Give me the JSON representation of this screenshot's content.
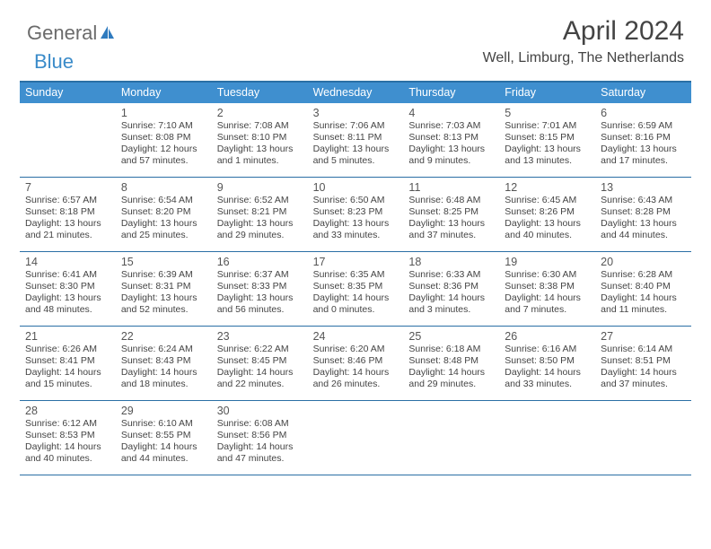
{
  "logo": {
    "text1": "General",
    "text2": "Blue"
  },
  "title": "April 2024",
  "location": "Well, Limburg, The Netherlands",
  "colors": {
    "header_bg": "#3f8fcf",
    "border": "#2a6fa5",
    "text": "#3a3a3a",
    "logo_gray": "#6b6b6b",
    "logo_blue": "#3a8bc9"
  },
  "day_headers": [
    "Sunday",
    "Monday",
    "Tuesday",
    "Wednesday",
    "Thursday",
    "Friday",
    "Saturday"
  ],
  "weeks": [
    [
      null,
      {
        "n": "1",
        "sr": "7:10 AM",
        "ss": "8:08 PM",
        "dl": "12 hours and 57 minutes."
      },
      {
        "n": "2",
        "sr": "7:08 AM",
        "ss": "8:10 PM",
        "dl": "13 hours and 1 minutes."
      },
      {
        "n": "3",
        "sr": "7:06 AM",
        "ss": "8:11 PM",
        "dl": "13 hours and 5 minutes."
      },
      {
        "n": "4",
        "sr": "7:03 AM",
        "ss": "8:13 PM",
        "dl": "13 hours and 9 minutes."
      },
      {
        "n": "5",
        "sr": "7:01 AM",
        "ss": "8:15 PM",
        "dl": "13 hours and 13 minutes."
      },
      {
        "n": "6",
        "sr": "6:59 AM",
        "ss": "8:16 PM",
        "dl": "13 hours and 17 minutes."
      }
    ],
    [
      {
        "n": "7",
        "sr": "6:57 AM",
        "ss": "8:18 PM",
        "dl": "13 hours and 21 minutes."
      },
      {
        "n": "8",
        "sr": "6:54 AM",
        "ss": "8:20 PM",
        "dl": "13 hours and 25 minutes."
      },
      {
        "n": "9",
        "sr": "6:52 AM",
        "ss": "8:21 PM",
        "dl": "13 hours and 29 minutes."
      },
      {
        "n": "10",
        "sr": "6:50 AM",
        "ss": "8:23 PM",
        "dl": "13 hours and 33 minutes."
      },
      {
        "n": "11",
        "sr": "6:48 AM",
        "ss": "8:25 PM",
        "dl": "13 hours and 37 minutes."
      },
      {
        "n": "12",
        "sr": "6:45 AM",
        "ss": "8:26 PM",
        "dl": "13 hours and 40 minutes."
      },
      {
        "n": "13",
        "sr": "6:43 AM",
        "ss": "8:28 PM",
        "dl": "13 hours and 44 minutes."
      }
    ],
    [
      {
        "n": "14",
        "sr": "6:41 AM",
        "ss": "8:30 PM",
        "dl": "13 hours and 48 minutes."
      },
      {
        "n": "15",
        "sr": "6:39 AM",
        "ss": "8:31 PM",
        "dl": "13 hours and 52 minutes."
      },
      {
        "n": "16",
        "sr": "6:37 AM",
        "ss": "8:33 PM",
        "dl": "13 hours and 56 minutes."
      },
      {
        "n": "17",
        "sr": "6:35 AM",
        "ss": "8:35 PM",
        "dl": "14 hours and 0 minutes."
      },
      {
        "n": "18",
        "sr": "6:33 AM",
        "ss": "8:36 PM",
        "dl": "14 hours and 3 minutes."
      },
      {
        "n": "19",
        "sr": "6:30 AM",
        "ss": "8:38 PM",
        "dl": "14 hours and 7 minutes."
      },
      {
        "n": "20",
        "sr": "6:28 AM",
        "ss": "8:40 PM",
        "dl": "14 hours and 11 minutes."
      }
    ],
    [
      {
        "n": "21",
        "sr": "6:26 AM",
        "ss": "8:41 PM",
        "dl": "14 hours and 15 minutes."
      },
      {
        "n": "22",
        "sr": "6:24 AM",
        "ss": "8:43 PM",
        "dl": "14 hours and 18 minutes."
      },
      {
        "n": "23",
        "sr": "6:22 AM",
        "ss": "8:45 PM",
        "dl": "14 hours and 22 minutes."
      },
      {
        "n": "24",
        "sr": "6:20 AM",
        "ss": "8:46 PM",
        "dl": "14 hours and 26 minutes."
      },
      {
        "n": "25",
        "sr": "6:18 AM",
        "ss": "8:48 PM",
        "dl": "14 hours and 29 minutes."
      },
      {
        "n": "26",
        "sr": "6:16 AM",
        "ss": "8:50 PM",
        "dl": "14 hours and 33 minutes."
      },
      {
        "n": "27",
        "sr": "6:14 AM",
        "ss": "8:51 PM",
        "dl": "14 hours and 37 minutes."
      }
    ],
    [
      {
        "n": "28",
        "sr": "6:12 AM",
        "ss": "8:53 PM",
        "dl": "14 hours and 40 minutes."
      },
      {
        "n": "29",
        "sr": "6:10 AM",
        "ss": "8:55 PM",
        "dl": "14 hours and 44 minutes."
      },
      {
        "n": "30",
        "sr": "6:08 AM",
        "ss": "8:56 PM",
        "dl": "14 hours and 47 minutes."
      },
      null,
      null,
      null,
      null
    ]
  ],
  "labels": {
    "sunrise": "Sunrise: ",
    "sunset": "Sunset: ",
    "daylight": "Daylight: "
  }
}
